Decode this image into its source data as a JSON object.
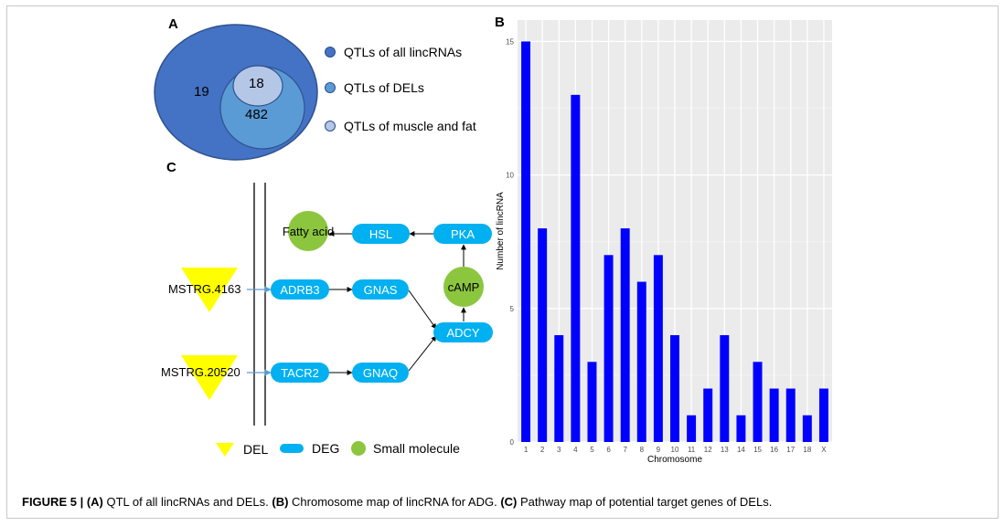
{
  "panels": {
    "a": "A",
    "b": "B",
    "c": "C"
  },
  "venn": {
    "outer_value": "19",
    "middle_value": "482",
    "inner_value": "18",
    "legend": [
      {
        "label": "QTLs of all lincRNAs",
        "color": "#4472c4"
      },
      {
        "label": "QTLs of DELs",
        "color": "#5b9bd5"
      },
      {
        "label": "QTLs of muscle and fat",
        "color": "#b4c7e7"
      }
    ]
  },
  "pathway": {
    "dels": [
      "MSTRG.4163",
      "MSTRG.20520"
    ],
    "genes": {
      "adrb3": "ADRB3",
      "gnas": "GNAS",
      "tacr2": "TACR2",
      "gnaq": "GNAQ",
      "adcy": "ADCY",
      "pka": "PKA",
      "hsl": "HSL"
    },
    "molecules": {
      "camp": "cAMP",
      "fatty_acid": "Fatty acid"
    },
    "legend": {
      "del": "DEL",
      "deg": "DEG",
      "small_molecule": "Small molecule"
    },
    "colors": {
      "del": "#ffff00",
      "deg": "#00b0f0",
      "small_molecule": "#8cc63f"
    }
  },
  "chart_data": {
    "type": "bar",
    "categories": [
      "1",
      "2",
      "3",
      "4",
      "5",
      "6",
      "7",
      "8",
      "9",
      "10",
      "11",
      "12",
      "13",
      "14",
      "15",
      "16",
      "17",
      "18",
      "X"
    ],
    "values": [
      15,
      8,
      4,
      13,
      3,
      7,
      8,
      6,
      7,
      4,
      1,
      2,
      4,
      1,
      3,
      2,
      2,
      1,
      2
    ],
    "xlabel": "Chromosome",
    "ylabel": "Number of lincRNA",
    "yticks": [
      "0",
      "5",
      "10",
      "15"
    ],
    "ylim": [
      0,
      15.8
    ],
    "bar_color": "#0000ff",
    "panel_background": "#ebebeb",
    "grid": true
  },
  "caption": {
    "lead": "FIGURE 5 | ",
    "a_tag": "(A)",
    "a_text": " QTL of all lincRNAs and DELs. ",
    "b_tag": "(B)",
    "b_text": " Chromosome map of lincRNA for ADG. ",
    "c_tag": "(C)",
    "c_text": " Pathway map of potential target genes of DELs."
  }
}
